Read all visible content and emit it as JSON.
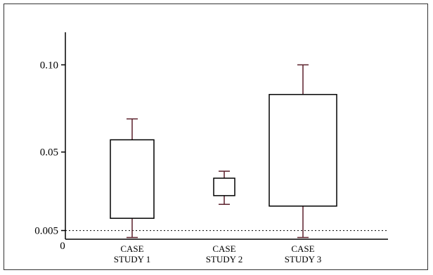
{
  "chart_data": {
    "type": "box",
    "title": "",
    "xlabel": "",
    "ylabel": "",
    "ylim": [
      0,
      0.105
    ],
    "y_ticks": [
      {
        "value": 0.005,
        "label": "0.005"
      },
      {
        "value": 0.05,
        "label": "0.05"
      },
      {
        "value": 0.1,
        "label": "0.10"
      }
    ],
    "origin_label": "0",
    "categories": [
      {
        "line1": "CASE",
        "line2": "STUDY 1"
      },
      {
        "line1": "CASE",
        "line2": "STUDY 2"
      },
      {
        "line1": "CASE",
        "line2": "STUDY 3"
      }
    ],
    "boxes": [
      {
        "whisker_low": 0.001,
        "q1": 0.012,
        "q3": 0.057,
        "whisker_high": 0.069
      },
      {
        "whisker_low": 0.02,
        "q1": 0.025,
        "q3": 0.035,
        "whisker_high": 0.039
      },
      {
        "whisker_low": 0.001,
        "q1": 0.019,
        "q3": 0.083,
        "whisker_high": 0.1
      }
    ],
    "reference_line": {
      "value": 0.005,
      "style": "dotted"
    },
    "colors": {
      "box_stroke": "#000000",
      "whisker": "#5a1f2a",
      "axis": "#000000"
    }
  }
}
